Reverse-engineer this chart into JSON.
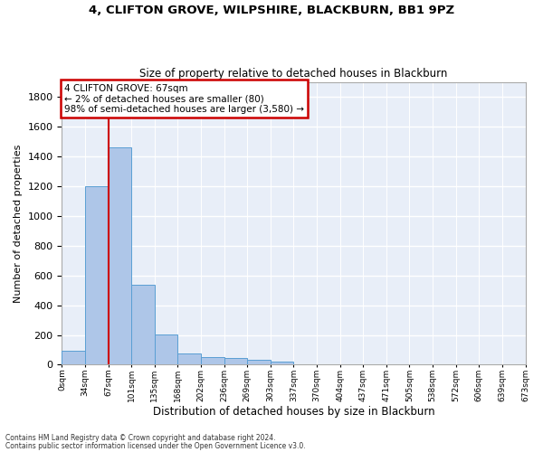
{
  "title1": "4, CLIFTON GROVE, WILPSHIRE, BLACKBURN, BB1 9PZ",
  "title2": "Size of property relative to detached houses in Blackburn",
  "xlabel": "Distribution of detached houses by size in Blackburn",
  "ylabel": "Number of detached properties",
  "footer1": "Contains HM Land Registry data © Crown copyright and database right 2024.",
  "footer2": "Contains public sector information licensed under the Open Government Licence v3.0.",
  "bin_labels": [
    "0sqm",
    "34sqm",
    "67sqm",
    "101sqm",
    "135sqm",
    "168sqm",
    "202sqm",
    "236sqm",
    "269sqm",
    "303sqm",
    "337sqm",
    "370sqm",
    "404sqm",
    "437sqm",
    "471sqm",
    "505sqm",
    "538sqm",
    "572sqm",
    "606sqm",
    "639sqm",
    "673sqm"
  ],
  "bar_values": [
    95,
    1200,
    1465,
    540,
    205,
    75,
    50,
    42,
    30,
    18,
    5,
    2,
    0,
    0,
    0,
    0,
    0,
    0,
    0,
    0
  ],
  "bar_color": "#aec6e8",
  "bar_edge_color": "#5a9fd4",
  "marker_color": "#cc0000",
  "annotation_title": "4 CLIFTON GROVE: 67sqm",
  "annotation_line1": "← 2% of detached houses are smaller (80)",
  "annotation_line2": "98% of semi-detached houses are larger (3,580) →",
  "ylim": [
    0,
    1900
  ],
  "yticks": [
    0,
    200,
    400,
    600,
    800,
    1000,
    1200,
    1400,
    1600,
    1800
  ],
  "background_color": "#e8eef8",
  "grid_color": "#ffffff",
  "fig_background": "#ffffff"
}
